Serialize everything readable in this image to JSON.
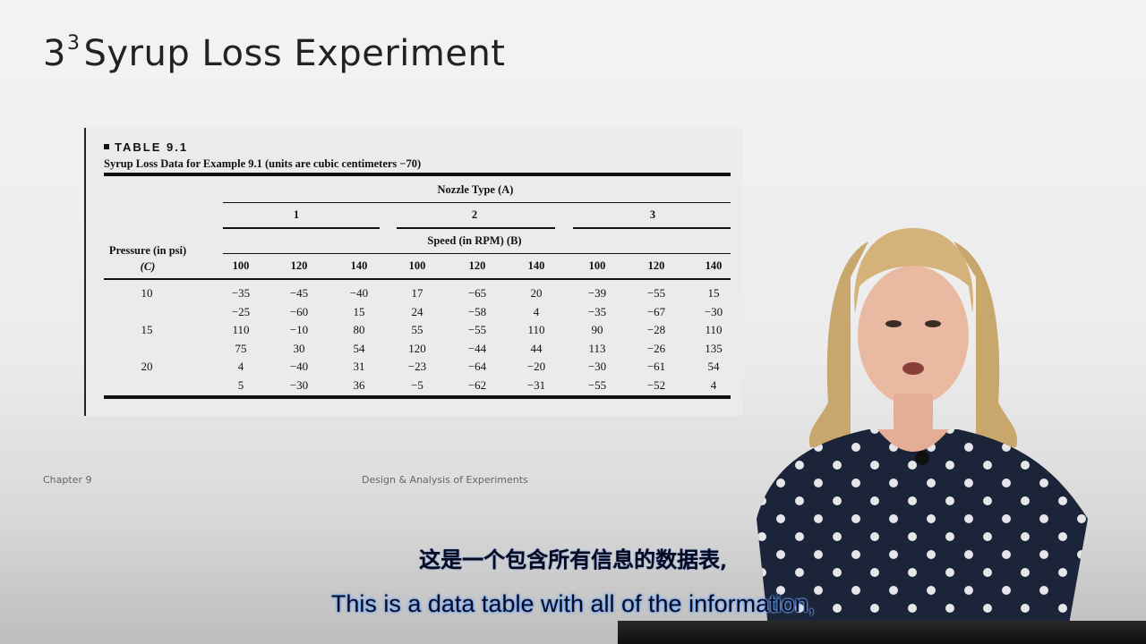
{
  "slide": {
    "title_base": "3",
    "title_sup": "3",
    "title_rest": "Syrup Loss Experiment",
    "footer_left": "Chapter 9",
    "footer_center": "Design & Analysis of Experiments"
  },
  "table": {
    "label": "TABLE 9.1",
    "caption": "Syrup Loss Data for Example 9.1 (units are cubic centimeters −70)",
    "nozzle_header": "Nozzle Type (A)",
    "nozzle_types": [
      "1",
      "2",
      "3"
    ],
    "speed_header": "Speed (in RPM) (B)",
    "pressure_header_line1": "Pressure (in psi)",
    "pressure_header_line2": "(C)",
    "speeds": [
      "100",
      "120",
      "140",
      "100",
      "120",
      "140",
      "100",
      "120",
      "140"
    ],
    "rows": [
      {
        "pressure": "10",
        "values": [
          "−35",
          "−45",
          "−40",
          "17",
          "−65",
          "20",
          "−39",
          "−55",
          "15"
        ]
      },
      {
        "pressure": "",
        "values": [
          "−25",
          "−60",
          "15",
          "24",
          "−58",
          "4",
          "−35",
          "−67",
          "−30"
        ]
      },
      {
        "pressure": "15",
        "values": [
          "110",
          "−10",
          "80",
          "55",
          "−55",
          "110",
          "90",
          "−28",
          "110"
        ]
      },
      {
        "pressure": "",
        "values": [
          "75",
          "30",
          "54",
          "120",
          "−44",
          "44",
          "113",
          "−26",
          "135"
        ]
      },
      {
        "pressure": "20",
        "values": [
          "4",
          "−40",
          "31",
          "−23",
          "−64",
          "−20",
          "−30",
          "−61",
          "54"
        ]
      },
      {
        "pressure": "",
        "values": [
          "5",
          "−30",
          "36",
          "−5",
          "−62",
          "−31",
          "−55",
          "−52",
          "4"
        ]
      }
    ]
  },
  "subtitles": {
    "chinese": "这是一个包含所有信息的数据表,",
    "english": "This is a data table with all of the information,"
  }
}
